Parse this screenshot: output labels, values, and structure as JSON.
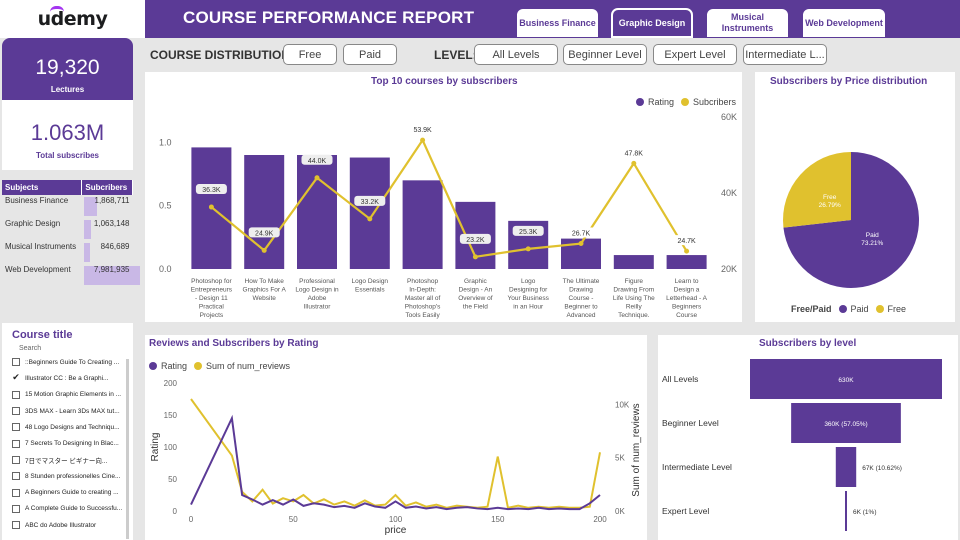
{
  "app": {
    "logo": "udemy",
    "title": "COURSE PERFORMANCE REPORT"
  },
  "tabs": [
    {
      "label": "Business Finance",
      "active": false
    },
    {
      "label": "Graphic Design",
      "active": true
    },
    {
      "label": "Musical Instruments",
      "active": false
    },
    {
      "label": "Web Development",
      "active": false
    }
  ],
  "filters": {
    "distribution_label": "COURSE DISTRIBUTION:",
    "distribution_options": [
      "Free",
      "Paid"
    ],
    "level_label": "LEVEL:",
    "level_options": [
      "All Levels",
      "Beginner Level",
      "Expert Level",
      "Intermediate L..."
    ]
  },
  "kpis": {
    "lectures_value": "19,320",
    "lectures_label": "Lectures",
    "subscribers_value": "1.063M",
    "subscribers_label": "Total subscribes"
  },
  "subjects_table": {
    "headers": [
      "Subjects",
      "Subcribers"
    ],
    "rows": [
      {
        "subject": "Business Finance",
        "value": "1,868,711",
        "num": 1868711
      },
      {
        "subject": "Graphic Design",
        "value": "1,063,148",
        "num": 1063148
      },
      {
        "subject": "Musical Instruments",
        "value": "846,689",
        "num": 846689
      },
      {
        "subject": "Web Development",
        "value": "7,981,935",
        "num": 7981935
      }
    ]
  },
  "course_list": {
    "title": "Course title",
    "search_placeholder": "Search",
    "items": [
      {
        "label": "::Beginners Guide To Creating ...",
        "checked": false
      },
      {
        "label": "Illustrator CC : Be a Graphi...",
        "checked": true
      },
      {
        "label": "15 Motion Graphic Elements in ...",
        "checked": false
      },
      {
        "label": "3DS MAX - Learn 3Ds MAX tut...",
        "checked": false
      },
      {
        "label": "48 Logo Designs and Techniqu...",
        "checked": false
      },
      {
        "label": "7 Secrets To Designing In Blac...",
        "checked": false
      },
      {
        "label": "7日でマスター ビギナー向...",
        "checked": false
      },
      {
        "label": "8 Stunden professionelles Cine...",
        "checked": false
      },
      {
        "label": "A Beginners Guide to creating ...",
        "checked": false
      },
      {
        "label": "A Complete Guide to Successfu...",
        "checked": false
      },
      {
        "label": "ABC do Adobe Illustrator",
        "checked": false
      }
    ]
  },
  "chart_data": [
    {
      "id": "top10",
      "type": "bar",
      "title": "Top 10 courses by subscribers",
      "legend": [
        "Rating",
        "Subcribers"
      ],
      "categories": [
        "Photoshop for Entrepreneurs - Design 11 Practical Projects",
        "How To Make Graphics For A Website",
        "Professional Logo Design in Adobe Illustrator",
        "Logo Design Essentials",
        "Photoshop In-Depth: Master all of Photoshop's Tools Easily",
        "Graphic Design - An Overview of the Field",
        "Logo Designing for Your Business in an Hour",
        "The Ultimate Drawing Course - Beginner to Advanced",
        "Figure Drawing From Life Using The Reilly Technique.",
        "Learn to Design a Letterhead - A Beginners Course"
      ],
      "category_lines": [
        [
          "Photoshop for",
          "Entrepreneurs",
          "- Design 11",
          "Practical",
          "Projects"
        ],
        [
          "How To Make",
          "Graphics For A",
          "Website"
        ],
        [
          "Professional",
          "Logo Design in",
          "Adobe",
          "Illustrator"
        ],
        [
          "Logo Design",
          "Essentials"
        ],
        [
          "Photoshop",
          "In-Depth:",
          "Master all of",
          "Photoshop's",
          "Tools Easily"
        ],
        [
          "Graphic",
          "Design - An",
          "Overview of",
          "the Field"
        ],
        [
          "Logo",
          "Designing for",
          "Your Business",
          "in an Hour"
        ],
        [
          "The Ultimate",
          "Drawing",
          "Course -",
          "Beginner to",
          "Advanced"
        ],
        [
          "Figure",
          "Drawing From",
          "Life Using The",
          "Reilly",
          "Technique."
        ],
        [
          "Learn to",
          "Design a",
          "Letterhead - A",
          "Beginners",
          "Course"
        ]
      ],
      "rating": [
        0.96,
        0.9,
        0.9,
        0.88,
        0.7,
        0.53,
        0.38,
        0.24,
        0.11,
        0.11
      ],
      "subscribers": [
        36300,
        24900,
        44000,
        33200,
        53900,
        23200,
        25300,
        26700,
        47800,
        24700
      ],
      "subscriber_labels": [
        "36.3K",
        "24.9K",
        "44.0K",
        "33.2K",
        "53.9K",
        "23.2K",
        "25.3K",
        "26.7K",
        "47.8K",
        "24.7K"
      ],
      "y_left": {
        "ticks": [
          "0.0",
          "0.5",
          "1.0"
        ],
        "range": [
          0,
          1.2
        ]
      },
      "y_right": {
        "ticks": [
          "20K",
          "40K",
          "60K"
        ],
        "range": [
          20000,
          60000
        ]
      }
    },
    {
      "id": "price",
      "type": "pie",
      "title": "Subscribers by Price distribution",
      "legend_title": "Free/Paid",
      "slices": [
        {
          "label": "Paid",
          "pct_label": "73.21%",
          "value": 73.21
        },
        {
          "label": "Free",
          "pct_label": "26.79%",
          "value": 26.79
        }
      ]
    },
    {
      "id": "byrating",
      "type": "line",
      "title": "Reviews and Subscribers by Rating",
      "legend": [
        "Rating",
        "Sum of num_reviews"
      ],
      "xlabel": "price",
      "ylabel": "Rating",
      "y2label": "Sum of num_reviews",
      "x_ticks": [
        "0",
        "50",
        "100",
        "150",
        "200"
      ],
      "y_ticks": [
        "0",
        "50",
        "100",
        "150",
        "200"
      ],
      "y2_ticks": [
        "0K",
        "5K",
        "10K"
      ],
      "xlim": [
        0,
        200
      ],
      "ylim": [
        0,
        200
      ],
      "y2lim": [
        0,
        12000
      ],
      "x": [
        0,
        20,
        25,
        30,
        35,
        40,
        45,
        50,
        55,
        60,
        65,
        70,
        75,
        80,
        85,
        90,
        95,
        100,
        105,
        110,
        115,
        120,
        125,
        130,
        135,
        140,
        145,
        150,
        155,
        160,
        165,
        170,
        175,
        180,
        185,
        190,
        195,
        200
      ],
      "rating": [
        10,
        145,
        25,
        18,
        10,
        17,
        10,
        18,
        8,
        12,
        10,
        6,
        8,
        5,
        12,
        7,
        5,
        15,
        5,
        7,
        4,
        6,
        3,
        5,
        6,
        4,
        3,
        5,
        3,
        4,
        3,
        5,
        3,
        4,
        3,
        3,
        12,
        25
      ],
      "reviews": [
        10500,
        5200,
        1800,
        900,
        2000,
        700,
        1200,
        900,
        1500,
        700,
        1100,
        600,
        900,
        500,
        1000,
        500,
        600,
        1500,
        500,
        800,
        400,
        600,
        300,
        500,
        400,
        300,
        400,
        5100,
        300,
        500,
        300,
        400,
        300,
        400,
        300,
        300,
        400,
        5500
      ]
    },
    {
      "id": "bylevel",
      "type": "bar",
      "orientation": "horizontal-funnel",
      "title": "Subscribers by level",
      "categories": [
        "All Levels",
        "Beginner Level",
        "Intermediate Level",
        "Expert Level"
      ],
      "values": [
        630000,
        360000,
        67000,
        6000
      ],
      "value_labels": [
        "630K",
        "360K (57.05%)",
        "67K (10.62%)",
        "6K (1%)"
      ]
    }
  ],
  "colors": {
    "primary": "#5b3a96",
    "accent": "#e0c12e",
    "light": "#c9b8e6"
  }
}
